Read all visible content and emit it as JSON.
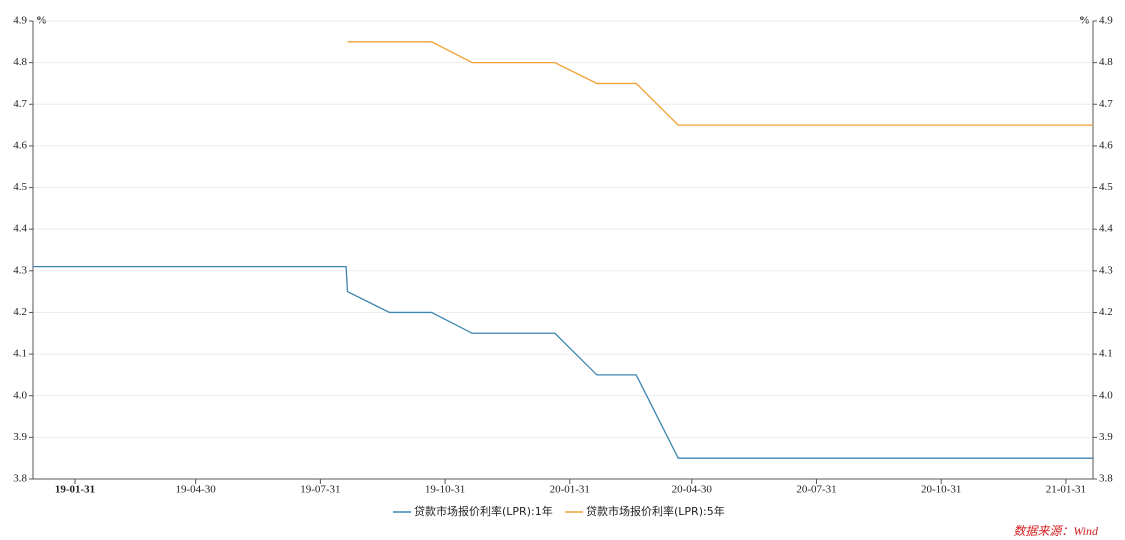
{
  "chart_data": {
    "type": "line",
    "y_unit": "%",
    "source": "数据来源：Wind",
    "x": [
      "18-12-31",
      "19-08-19",
      "19-08-20",
      "19-09-20",
      "19-10-21",
      "19-11-20",
      "19-12-20",
      "20-01-20",
      "20-02-20",
      "20-03-20",
      "20-04-20",
      "20-05-20",
      "20-06-22",
      "20-07-20",
      "20-08-20",
      "20-09-21",
      "20-10-20",
      "20-11-20",
      "20-12-21",
      "21-01-20",
      "21-02-20"
    ],
    "series": [
      {
        "name": "贷款市场报价利率(LPR):1年",
        "color": "#3d85b0",
        "values": [
          4.31,
          4.31,
          4.25,
          4.2,
          4.2,
          4.15,
          4.15,
          4.15,
          4.05,
          4.05,
          3.85,
          3.85,
          3.85,
          3.85,
          3.85,
          3.85,
          3.85,
          3.85,
          3.85,
          3.85,
          3.85
        ]
      },
      {
        "name": "贷款市场报价利率(LPR):5年",
        "color": "#f0a035",
        "axis": "y2",
        "values": [
          null,
          null,
          4.85,
          4.85,
          4.85,
          4.8,
          4.8,
          4.8,
          4.75,
          4.75,
          4.65,
          4.65,
          4.65,
          4.65,
          4.65,
          4.65,
          4.65,
          4.65,
          4.65,
          4.65,
          4.65
        ]
      }
    ],
    "xlim": [
      "18-12-31",
      "21-02-20"
    ],
    "xticks": [
      "19-01-31",
      "19-04-30",
      "19-07-31",
      "19-10-31",
      "20-01-31",
      "20-04-30",
      "20-07-31",
      "20-10-31",
      "21-01-31"
    ],
    "ylim": [
      3.8,
      4.9
    ],
    "yticks": [
      3.8,
      3.9,
      {
        "value": 4,
        "label": "4.0"
      },
      4.1,
      4.2,
      4.3,
      4.4,
      4.5,
      4.6,
      4.7,
      4.8,
      4.9
    ],
    "y2lim": [
      3.8,
      4.9
    ],
    "y2ticks": [
      3.8,
      3.9,
      {
        "value": 4,
        "label": "4.0"
      },
      4.1,
      4.2,
      4.3,
      4.4,
      4.5,
      4.6,
      4.7,
      4.8,
      4.9
    ],
    "grid": true,
    "legend": "bottom"
  }
}
